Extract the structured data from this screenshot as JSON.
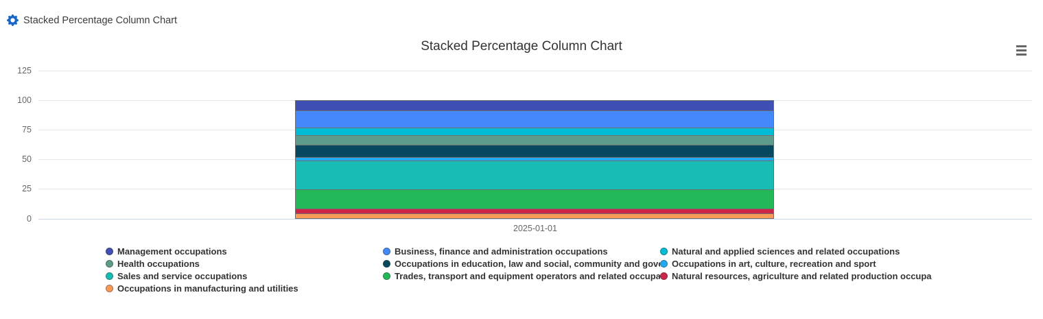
{
  "header": {
    "title": "Stacked Percentage Column Chart"
  },
  "chart": {
    "title": "Stacked Percentage Column Chart",
    "context_menu_icon": "hamburger-menu-icon"
  },
  "colors": {
    "gear_blue": "#1766C8",
    "title_text": "#333333",
    "axis_text": "#666666",
    "gridline": "#e6e6e6",
    "axis_line": "#ccd6eb",
    "segment_border": "#6e6e6e"
  },
  "chart_data": {
    "type": "bar",
    "stacking": "percent",
    "title": "Stacked Percentage Column Chart",
    "categories": [
      "2025-01-01"
    ],
    "series": [
      {
        "name": "Management occupations",
        "color": "#3E50B4",
        "values": [
          8.7
        ]
      },
      {
        "name": "Business, finance and administration occupations",
        "color": "#4489FB",
        "values": [
          14.5
        ]
      },
      {
        "name": "Natural and applied sciences and related occupations",
        "color": "#00BCD4",
        "values": [
          6.2
        ]
      },
      {
        "name": "Health occupations",
        "color": "#5D9B8D",
        "values": [
          8.1
        ]
      },
      {
        "name": "Occupations in education, law and social, community and gove",
        "color": "#06495F",
        "values": [
          10.8
        ]
      },
      {
        "name": "Occupations in art, culture, recreation and sport",
        "color": "#1FAAF1",
        "values": [
          2.9
        ]
      },
      {
        "name": "Sales and service occupations",
        "color": "#18BCB4",
        "values": [
          24.0
        ]
      },
      {
        "name": "Trades, transport and equipment operators and related occupa",
        "color": "#23B858",
        "values": [
          16.4
        ]
      },
      {
        "name": "Natural resources, agriculture and related production occupa",
        "color": "#CB2649",
        "values": [
          3.9
        ]
      },
      {
        "name": "Occupations in manufacturing and utilities",
        "color": "#FB9A57",
        "values": [
          4.5
        ]
      }
    ],
    "xlabel": "",
    "ylabel": "",
    "y_ticks": [
      0,
      25,
      50,
      75,
      100,
      125
    ],
    "ylim": [
      0,
      125
    ],
    "grid": true,
    "legend_position": "bottom",
    "legend_columns": 3,
    "stack_order": "first-series-on-top"
  }
}
